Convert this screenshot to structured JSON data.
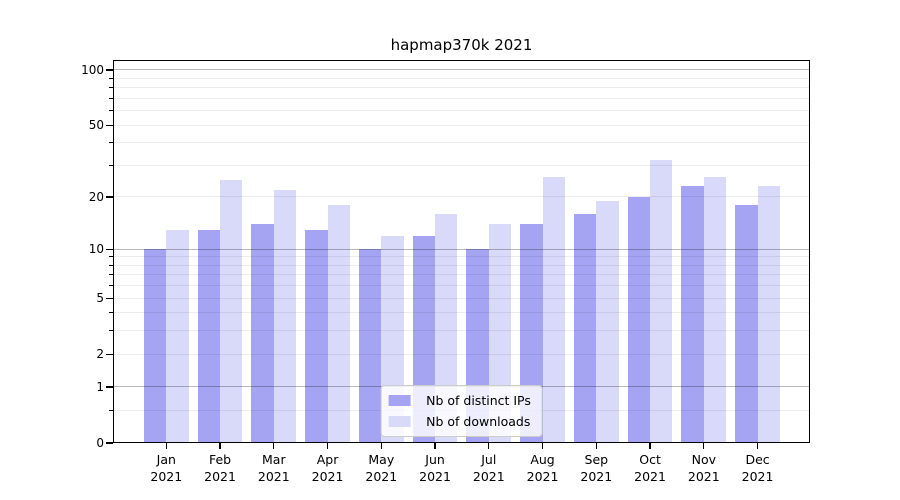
{
  "chart_data": {
    "type": "bar",
    "title": "hapmap370k 2021",
    "categories": [
      "Jan",
      "Feb",
      "Mar",
      "Apr",
      "May",
      "Jun",
      "Jul",
      "Aug",
      "Sep",
      "Oct",
      "Nov",
      "Dec"
    ],
    "year": "2021",
    "series": [
      {
        "name": "Nb of distinct IPs",
        "color": "#a4a4f3",
        "values": [
          10,
          13,
          14,
          13,
          10,
          12,
          10,
          14,
          16,
          20,
          23,
          18
        ]
      },
      {
        "name": "Nb of downloads",
        "color": "#d9d9f9",
        "values": [
          13,
          25,
          22,
          18,
          12,
          16,
          14,
          26,
          19,
          32,
          26,
          23
        ]
      }
    ],
    "xlabel": "",
    "ylabel": "",
    "yscale": "log1p",
    "ylim": [
      0,
      113.3
    ],
    "y_ticks_labeled": [
      100,
      50,
      20,
      10,
      5,
      2,
      1,
      0
    ],
    "y_grid_major": [
      1,
      10,
      100
    ],
    "y_grid_minor": [
      0.5,
      2,
      3,
      4,
      5,
      6,
      7,
      8,
      9,
      20,
      30,
      40,
      50,
      60,
      70,
      80,
      90
    ],
    "grid": true,
    "legend_position": "lower center"
  }
}
